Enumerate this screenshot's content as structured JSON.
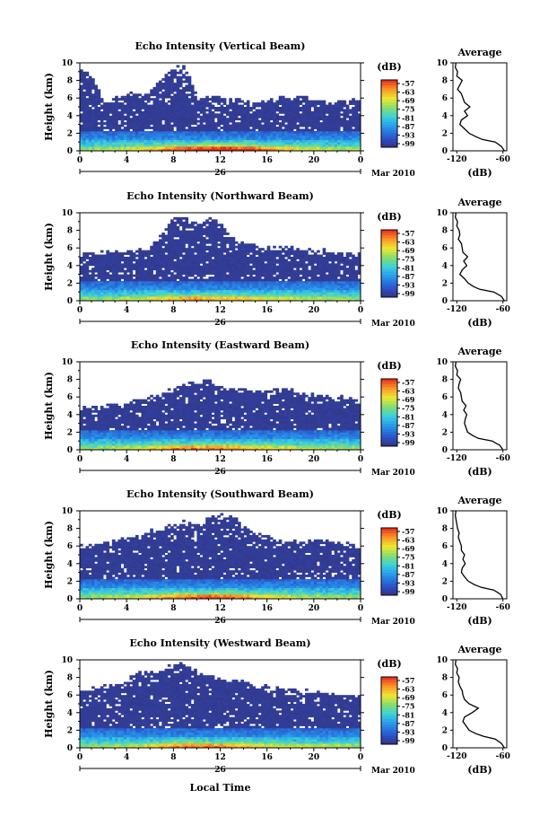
{
  "chart_data": [
    {
      "type": "heatmap",
      "title": "Echo Intensity (Vertical Beam)",
      "ylabel": "Height (km)",
      "yticks": [
        "0",
        "2",
        "4",
        "6",
        "8",
        "10"
      ],
      "xticks": [
        "0",
        "4",
        "8",
        "12",
        "16",
        "20",
        "0"
      ],
      "date_day": "26",
      "date_label": "Mar 2010",
      "ylim": [
        0,
        10
      ],
      "xlim": [
        0,
        24
      ],
      "top_km": [
        9.6,
        8.4,
        5.6,
        6.2,
        6.6,
        6.3,
        6.6,
        8.3,
        9.6,
        9.5,
        6.2,
        6.1,
        6.0,
        5.8,
        5.7,
        5.5,
        5.7,
        5.9,
        6.1,
        6.3,
        5.8,
        5.7,
        5.5,
        5.6,
        5.8
      ],
      "intensity": [
        0.25,
        0.25,
        0.3,
        0.32,
        0.36,
        0.42,
        0.5,
        0.62,
        0.72,
        0.8,
        0.88,
        0.92,
        0.95,
        0.93,
        0.85,
        0.75,
        0.65,
        0.55,
        0.45,
        0.38,
        0.34,
        0.3,
        0.28,
        0.27,
        0.26
      ],
      "colorbar": {
        "label": "(dB)",
        "ticks": [
          "-57",
          "-63",
          "-69",
          "-75",
          "-81",
          "-87",
          "-93",
          "-99"
        ]
      },
      "profile": {
        "title": "Average",
        "xlabel": "(dB)",
        "xticks": [
          "-120",
          "-60"
        ],
        "xlim": [
          -125,
          -55
        ],
        "yticks": [
          "0",
          "2",
          "4",
          "6",
          "8",
          "10"
        ],
        "heights": [
          0,
          0.5,
          1,
          1.3,
          1.6,
          2.0,
          2.5,
          3.0,
          3.5,
          4.0,
          4.5,
          5.0,
          5.5,
          6.0,
          6.5,
          7.0,
          7.5,
          8.0,
          8.5,
          9.0,
          9.5,
          10
        ],
        "values": [
          -58,
          -62,
          -70,
          -87,
          -95,
          -104,
          -110,
          -116,
          -114,
          -106,
          -110,
          -103,
          -110,
          -112,
          -114,
          -119,
          -116,
          -113,
          -120,
          -119,
          -122,
          -121
        ]
      }
    },
    {
      "type": "heatmap",
      "title": "Echo Intensity (Northward Beam)",
      "ylabel": "Height (km)",
      "yticks": [
        "0",
        "2",
        "4",
        "6",
        "8",
        "10"
      ],
      "xticks": [
        "0",
        "4",
        "8",
        "12",
        "16",
        "20",
        "0"
      ],
      "date_day": "26",
      "date_label": "Mar 2010",
      "ylim": [
        0,
        10
      ],
      "xlim": [
        0,
        24
      ],
      "top_km": [
        5.3,
        5.4,
        5.5,
        5.6,
        5.7,
        5.8,
        6.0,
        7.5,
        9.4,
        9.2,
        8.7,
        9.3,
        8.7,
        7.2,
        6.5,
        6.2,
        6.1,
        5.9,
        6.2,
        5.8,
        5.5,
        5.7,
        5.4,
        5.3,
        5.3
      ],
      "intensity": [
        0.2,
        0.22,
        0.25,
        0.28,
        0.3,
        0.35,
        0.4,
        0.48,
        0.55,
        0.6,
        0.62,
        0.6,
        0.58,
        0.55,
        0.5,
        0.45,
        0.42,
        0.38,
        0.35,
        0.32,
        0.3,
        0.28,
        0.26,
        0.24,
        0.22
      ],
      "colorbar": {
        "label": "(dB)",
        "ticks": [
          "-57",
          "-63",
          "-69",
          "-75",
          "-81",
          "-87",
          "-93",
          "-99"
        ]
      },
      "profile": {
        "title": "Average",
        "xlabel": "(dB)",
        "xticks": [
          "-120",
          "-60"
        ],
        "xlim": [
          -125,
          -55
        ],
        "yticks": [
          "0",
          "2",
          "4",
          "6",
          "8",
          "10"
        ],
        "heights": [
          0,
          0.5,
          1,
          1.3,
          1.6,
          2.0,
          2.5,
          3.0,
          3.5,
          4.0,
          4.5,
          5.0,
          5.5,
          6.0,
          6.5,
          7.0,
          7.5,
          8.0,
          8.5,
          9.0,
          9.5,
          10
        ],
        "values": [
          -58,
          -62,
          -72,
          -90,
          -98,
          -105,
          -110,
          -116,
          -113,
          -107,
          -111,
          -106,
          -112,
          -113,
          -114,
          -118,
          -116,
          -117,
          -120,
          -119,
          -122,
          -121
        ]
      }
    },
    {
      "type": "heatmap",
      "title": "Echo Intensity (Eastward Beam)",
      "ylabel": "Height (km)",
      "yticks": [
        "0",
        "2",
        "4",
        "6",
        "8",
        "10"
      ],
      "xticks": [
        "0",
        "4",
        "8",
        "12",
        "16",
        "20",
        "0"
      ],
      "date_day": "26",
      "date_label": "Mar 2010",
      "ylim": [
        0,
        10
      ],
      "xlim": [
        0,
        24
      ],
      "top_km": [
        4.7,
        4.9,
        5.0,
        5.1,
        5.3,
        5.6,
        5.9,
        6.3,
        7.0,
        7.4,
        7.8,
        7.9,
        7.0,
        6.9,
        6.8,
        6.6,
        6.4,
        6.8,
        6.9,
        6.5,
        6.3,
        6.2,
        5.9,
        6.1,
        5.4
      ],
      "intensity": [
        0.2,
        0.22,
        0.25,
        0.28,
        0.3,
        0.35,
        0.42,
        0.5,
        0.58,
        0.62,
        0.66,
        0.64,
        0.6,
        0.55,
        0.5,
        0.45,
        0.42,
        0.38,
        0.35,
        0.32,
        0.3,
        0.28,
        0.26,
        0.24,
        0.22
      ],
      "colorbar": {
        "label": "(dB)",
        "ticks": [
          "-57",
          "-63",
          "-69",
          "-75",
          "-81",
          "-87",
          "-93",
          "-99"
        ]
      },
      "profile": {
        "title": "Average",
        "xlabel": "(dB)",
        "xticks": [
          "-120",
          "-60"
        ],
        "xlim": [
          -125,
          -55
        ],
        "yticks": [
          "0",
          "2",
          "4",
          "6",
          "8",
          "10"
        ],
        "heights": [
          0,
          0.5,
          1,
          1.3,
          1.6,
          2.0,
          2.5,
          3.0,
          3.5,
          4.0,
          4.5,
          5.0,
          5.5,
          6.0,
          6.5,
          7.0,
          7.5,
          8.0,
          8.5,
          9.0,
          9.5,
          10
        ],
        "values": [
          -60,
          -64,
          -74,
          -92,
          -99,
          -106,
          -108,
          -110,
          -109,
          -107,
          -111,
          -108,
          -113,
          -114,
          -115,
          -118,
          -117,
          -115,
          -120,
          -119,
          -122,
          -121
        ]
      }
    },
    {
      "type": "heatmap",
      "title": "Echo Intensity (Southward Beam)",
      "ylabel": "Height (km)",
      "yticks": [
        "0",
        "2",
        "4",
        "6",
        "8",
        "10"
      ],
      "xticks": [
        "0",
        "4",
        "8",
        "12",
        "16",
        "20",
        "0"
      ],
      "date_day": "26",
      "date_label": "Mar 2010",
      "ylim": [
        0,
        10
      ],
      "xlim": [
        0,
        24
      ],
      "top_km": [
        6.0,
        6.2,
        6.4,
        6.6,
        7.0,
        7.2,
        7.6,
        8.0,
        8.4,
        8.7,
        8.5,
        9.3,
        9.6,
        9.4,
        8.2,
        7.5,
        7.0,
        6.6,
        6.6,
        6.5,
        6.7,
        6.6,
        6.4,
        6.3,
        6.1
      ],
      "intensity": [
        0.2,
        0.22,
        0.25,
        0.28,
        0.3,
        0.35,
        0.45,
        0.55,
        0.65,
        0.72,
        0.78,
        0.8,
        0.78,
        0.72,
        0.62,
        0.52,
        0.45,
        0.4,
        0.36,
        0.33,
        0.3,
        0.28,
        0.26,
        0.24,
        0.22
      ],
      "colorbar": {
        "label": "(dB)",
        "ticks": [
          "-57",
          "-63",
          "-69",
          "-75",
          "-81",
          "-87",
          "-93",
          "-99"
        ]
      },
      "profile": {
        "title": "Average",
        "xlabel": "(dB)",
        "xticks": [
          "-120",
          "-60"
        ],
        "xlim": [
          -125,
          -55
        ],
        "yticks": [
          "0",
          "2",
          "4",
          "6",
          "8",
          "10"
        ],
        "heights": [
          0,
          0.5,
          1,
          1.3,
          1.6,
          2.0,
          2.5,
          3.0,
          3.5,
          4.0,
          4.5,
          5.0,
          5.5,
          6.0,
          6.5,
          7.0,
          7.5,
          8.0,
          8.5,
          9.0,
          9.5,
          10
        ],
        "values": [
          -60,
          -63,
          -72,
          -88,
          -97,
          -105,
          -110,
          -114,
          -113,
          -109,
          -112,
          -110,
          -114,
          -114,
          -116,
          -118,
          -117,
          -119,
          -120,
          -121,
          -122,
          -121
        ]
      }
    },
    {
      "type": "heatmap",
      "title": "Echo Intensity (Westward Beam)",
      "ylabel": "Height (km)",
      "yticks": [
        "0",
        "2",
        "4",
        "6",
        "8",
        "10"
      ],
      "xticks": [
        "0",
        "4",
        "8",
        "12",
        "16",
        "20",
        "0"
      ],
      "date_day": "26",
      "date_label": "Mar 2010",
      "xlabel": "Local Time",
      "ylim": [
        0,
        10
      ],
      "xlim": [
        0,
        24
      ],
      "top_km": [
        6.3,
        6.8,
        7.0,
        7.2,
        7.6,
        8.8,
        8.6,
        8.8,
        9.3,
        9.6,
        8.5,
        8.3,
        8.0,
        7.6,
        7.4,
        7.2,
        7.0,
        6.8,
        6.6,
        6.5,
        6.4,
        6.3,
        6.1,
        6.0,
        6.0
      ],
      "intensity": [
        0.2,
        0.22,
        0.25,
        0.28,
        0.3,
        0.35,
        0.42,
        0.5,
        0.58,
        0.64,
        0.68,
        0.66,
        0.62,
        0.56,
        0.5,
        0.45,
        0.4,
        0.36,
        0.33,
        0.3,
        0.28,
        0.26,
        0.25,
        0.24,
        0.22
      ],
      "colorbar": {
        "label": "(dB)",
        "ticks": [
          "-57",
          "-63",
          "-69",
          "-75",
          "-81",
          "-87",
          "-93",
          "-99"
        ]
      },
      "profile": {
        "title": "Average",
        "xlabel": "(dB)",
        "xticks": [
          "-120",
          "-60"
        ],
        "xlim": [
          -125,
          -55
        ],
        "yticks": [
          "0",
          "2",
          "4",
          "6",
          "8",
          "10"
        ],
        "heights": [
          0,
          0.5,
          1,
          1.3,
          1.6,
          2.0,
          2.5,
          3.0,
          3.5,
          4.0,
          4.5,
          5.0,
          5.5,
          6.0,
          6.5,
          7.0,
          7.5,
          8.0,
          8.5,
          9.0,
          9.5,
          10
        ],
        "values": [
          -58,
          -62,
          -70,
          -85,
          -95,
          -104,
          -108,
          -112,
          -110,
          -100,
          -92,
          -104,
          -110,
          -112,
          -113,
          -116,
          -118,
          -117,
          -120,
          -119,
          -122,
          -121
        ]
      }
    }
  ]
}
